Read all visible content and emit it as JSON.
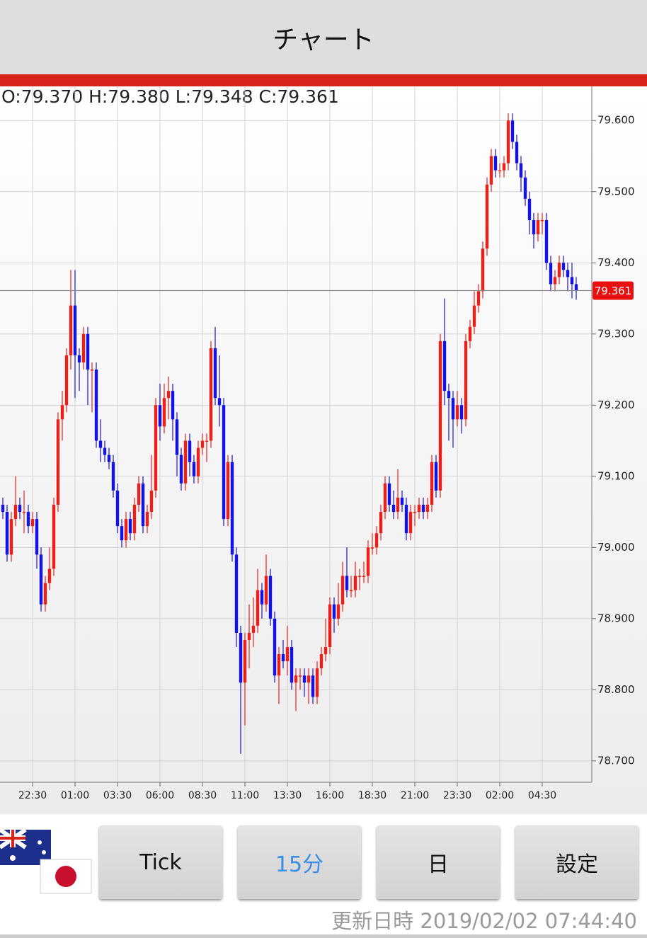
{
  "header": {
    "title": "チャート"
  },
  "chart_data": {
    "type": "candlestick",
    "ohlc_label": "O:79.370 H:79.380 L:79.348 C:79.361",
    "last_price_label": "79.361",
    "up_color": "#e8221b",
    "down_color": "#1414e0",
    "ylim": [
      78.67,
      79.648
    ],
    "yticks": [
      {
        "value": 78.7,
        "label": "78.700"
      },
      {
        "value": 78.8,
        "label": "78.800"
      },
      {
        "value": 78.9,
        "label": "78.900"
      },
      {
        "value": 79.0,
        "label": "79.000"
      },
      {
        "value": 79.1,
        "label": "79.100"
      },
      {
        "value": 79.2,
        "label": "79.200"
      },
      {
        "value": 79.3,
        "label": "79.300"
      },
      {
        "value": 79.4,
        "label": "79.400"
      },
      {
        "value": 79.5,
        "label": "79.500"
      },
      {
        "value": 79.6,
        "label": "79.600"
      }
    ],
    "grid": true,
    "categories": [
      null,
      null,
      null,
      null,
      null,
      null,
      null,
      "22:30",
      null,
      null,
      null,
      null,
      null,
      null,
      null,
      null,
      null,
      "01:00",
      null,
      null,
      null,
      null,
      null,
      null,
      null,
      null,
      null,
      "03:30",
      null,
      null,
      null,
      null,
      null,
      null,
      null,
      null,
      null,
      "06:00",
      null,
      null,
      null,
      null,
      null,
      null,
      null,
      null,
      null,
      "08:30",
      null,
      null,
      null,
      null,
      null,
      null,
      null,
      null,
      null,
      "11:00",
      null,
      null,
      null,
      null,
      null,
      null,
      null,
      null,
      null,
      "13:30",
      null,
      null,
      null,
      null,
      null,
      null,
      null,
      null,
      null,
      "16:00",
      null,
      null,
      null,
      null,
      null,
      null,
      null,
      null,
      null,
      "18:30",
      null,
      null,
      null,
      null,
      null,
      null,
      null,
      null,
      null,
      "21:00",
      null,
      null,
      null,
      null,
      null,
      null,
      null,
      null,
      null,
      "23:30",
      null,
      null,
      null,
      null,
      null,
      null,
      null,
      null,
      null,
      "02:00",
      null,
      null,
      null,
      null,
      null,
      null,
      null,
      null,
      null,
      "04:30",
      null,
      null,
      null,
      null,
      null,
      null,
      null,
      null
    ],
    "open": [
      79.06,
      79.05,
      78.99,
      79.04,
      79.06,
      79.05,
      79.05,
      79.03,
      79.04,
      78.99,
      78.92,
      78.95,
      78.97,
      79.06,
      79.18,
      79.2,
      79.27,
      79.34,
      79.27,
      79.26,
      79.3,
      79.25,
      79.25,
      79.15,
      79.14,
      79.13,
      79.12,
      79.08,
      79.03,
      79.01,
      79.04,
      79.02,
      79.06,
      79.09,
      79.03,
      79.05,
      79.08,
      79.2,
      79.17,
      79.21,
      79.22,
      79.18,
      79.13,
      79.09,
      79.15,
      79.12,
      79.1,
      79.14,
      79.15,
      79.15,
      79.28,
      79.21,
      79.2,
      79.04,
      79.12,
      78.99,
      78.88,
      78.81,
      78.87,
      78.88,
      78.89,
      78.94,
      78.92,
      78.96,
      78.9,
      78.82,
      78.85,
      78.84,
      78.86,
      78.81,
      78.82,
      78.82,
      78.81,
      78.82,
      78.79,
      78.83,
      78.85,
      78.86,
      78.92,
      78.9,
      78.92,
      78.96,
      78.94,
      78.94,
      78.96,
      78.96,
      78.96,
      79.0,
      79.0,
      79.02,
      79.05,
      79.09,
      79.06,
      79.05,
      79.07,
      79.06,
      79.02,
      79.05,
      79.05,
      79.06,
      79.05,
      79.06,
      79.12,
      79.08,
      79.29,
      79.22,
      79.21,
      79.18,
      79.2,
      79.18,
      79.29,
      79.31,
      79.34,
      79.36,
      79.42,
      79.51,
      79.55,
      79.53,
      79.53,
      79.54,
      79.6,
      79.57,
      79.54,
      79.52,
      79.49,
      79.46,
      79.44,
      79.46,
      79.46,
      79.4,
      79.37,
      79.38,
      79.4,
      79.39,
      79.38,
      79.37
    ],
    "high": [
      79.07,
      79.06,
      79.05,
      79.1,
      79.07,
      79.08,
      79.06,
      79.05,
      79.05,
      79.0,
      78.96,
      79.0,
      79.07,
      79.19,
      79.22,
      79.28,
      79.39,
      79.39,
      79.28,
      79.31,
      79.31,
      79.26,
      79.26,
      79.18,
      79.15,
      79.14,
      79.13,
      79.09,
      79.04,
      79.05,
      79.05,
      79.07,
      79.1,
      79.1,
      79.06,
      79.13,
      79.21,
      79.23,
      79.23,
      79.24,
      79.23,
      79.19,
      79.14,
      79.16,
      79.16,
      79.13,
      79.15,
      79.16,
      79.16,
      79.29,
      79.31,
      79.27,
      79.21,
      79.13,
      79.13,
      79.0,
      78.89,
      78.88,
      78.92,
      78.93,
      78.97,
      78.95,
      78.99,
      78.97,
      78.91,
      78.86,
      78.87,
      78.89,
      78.87,
      78.83,
      78.83,
      78.83,
      78.83,
      78.83,
      78.84,
      78.86,
      78.9,
      78.93,
      78.93,
      78.95,
      78.98,
      79.0,
      78.96,
      78.98,
      78.97,
      78.98,
      79.01,
      79.02,
      79.03,
      79.06,
      79.1,
      79.1,
      79.08,
      79.11,
      79.08,
      79.07,
      79.06,
      79.06,
      79.07,
      79.07,
      79.07,
      79.13,
      79.13,
      79.3,
      79.35,
      79.23,
      79.22,
      79.22,
      79.21,
      79.3,
      79.32,
      79.36,
      79.37,
      79.43,
      79.52,
      79.56,
      79.56,
      79.54,
      79.55,
      79.61,
      79.61,
      79.58,
      79.55,
      79.53,
      79.5,
      79.47,
      79.47,
      79.47,
      79.47,
      79.41,
      79.39,
      79.41,
      79.41,
      79.4,
      79.4,
      79.38
    ],
    "low": [
      79.04,
      78.98,
      78.98,
      79.03,
      79.04,
      79.02,
      79.02,
      79.02,
      78.97,
      78.91,
      78.91,
      78.94,
      78.96,
      79.05,
      79.15,
      79.19,
      79.25,
      79.21,
      79.22,
      79.25,
      79.2,
      79.19,
      79.14,
      79.12,
      79.12,
      79.11,
      79.07,
      79.02,
      79.0,
      79.0,
      79.01,
      79.01,
      79.05,
      79.02,
      79.02,
      79.04,
      79.07,
      79.15,
      79.16,
      79.18,
      79.15,
      79.1,
      79.08,
      79.08,
      79.1,
      79.09,
      79.09,
      79.13,
      79.12,
      79.14,
      79.2,
      79.17,
      79.03,
      79.03,
      78.98,
      78.86,
      78.71,
      78.75,
      78.83,
      78.86,
      78.88,
      78.9,
      78.91,
      78.89,
      78.81,
      78.78,
      78.83,
      78.82,
      78.8,
      78.77,
      78.8,
      78.79,
      78.78,
      78.78,
      78.78,
      78.82,
      78.84,
      78.85,
      78.88,
      78.89,
      78.91,
      78.93,
      78.93,
      78.93,
      78.94,
      78.95,
      78.95,
      78.99,
      78.99,
      79.01,
      79.04,
      79.05,
      79.04,
      79.04,
      79.05,
      79.01,
      79.01,
      79.03,
      79.04,
      79.04,
      79.04,
      79.05,
      79.07,
      79.07,
      79.2,
      79.15,
      79.14,
      79.17,
      79.16,
      79.17,
      79.28,
      79.3,
      79.33,
      79.35,
      79.41,
      79.5,
      79.52,
      79.52,
      79.52,
      79.53,
      79.56,
      79.53,
      79.5,
      79.48,
      79.44,
      79.42,
      79.43,
      79.44,
      79.39,
      79.36,
      79.36,
      79.37,
      79.38,
      79.36,
      79.35,
      79.348
    ],
    "close": [
      79.05,
      78.99,
      79.04,
      79.06,
      79.05,
      79.05,
      79.03,
      79.04,
      78.99,
      78.92,
      78.95,
      78.97,
      79.06,
      79.18,
      79.2,
      79.27,
      79.34,
      79.27,
      79.26,
      79.3,
      79.25,
      79.25,
      79.15,
      79.14,
      79.13,
      79.12,
      79.08,
      79.03,
      79.01,
      79.04,
      79.02,
      79.06,
      79.09,
      79.03,
      79.05,
      79.08,
      79.2,
      79.17,
      79.21,
      79.22,
      79.18,
      79.13,
      79.09,
      79.15,
      79.12,
      79.1,
      79.14,
      79.15,
      79.15,
      79.28,
      79.21,
      79.2,
      79.04,
      79.12,
      78.99,
      78.88,
      78.81,
      78.87,
      78.88,
      78.89,
      78.94,
      78.92,
      78.96,
      78.9,
      78.82,
      78.85,
      78.84,
      78.86,
      78.81,
      78.82,
      78.82,
      78.81,
      78.82,
      78.79,
      78.83,
      78.85,
      78.86,
      78.92,
      78.9,
      78.92,
      78.96,
      78.94,
      78.94,
      78.96,
      78.96,
      78.96,
      79.0,
      79.0,
      79.02,
      79.05,
      79.09,
      79.06,
      79.05,
      79.07,
      79.06,
      79.02,
      79.05,
      79.05,
      79.06,
      79.05,
      79.06,
      79.12,
      79.08,
      79.29,
      79.22,
      79.21,
      79.18,
      79.2,
      79.18,
      79.29,
      79.31,
      79.34,
      79.36,
      79.42,
      79.51,
      79.55,
      79.53,
      79.53,
      79.54,
      79.6,
      79.57,
      79.54,
      79.52,
      79.49,
      79.46,
      79.44,
      79.46,
      79.46,
      79.4,
      79.37,
      79.38,
      79.4,
      79.39,
      79.38,
      79.37,
      79.361
    ]
  },
  "buttons": [
    "Tick",
    "15分",
    "日",
    "設定"
  ],
  "selected_button": 1,
  "footer": {
    "updated": "更新日時 2019/02/02 07:44:40"
  }
}
